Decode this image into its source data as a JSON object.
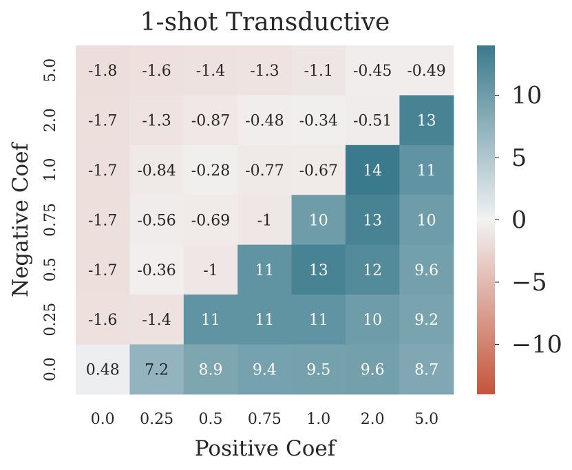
{
  "chart_data": {
    "type": "heatmap",
    "title": "1-shot Transductive",
    "xlabel": "Positive Coef",
    "ylabel": "Negative Coef",
    "x_categories": [
      "0.0",
      "0.25",
      "0.5",
      "0.75",
      "1.0",
      "2.0",
      "5.0"
    ],
    "y_categories": [
      "5.0",
      "2.0",
      "1.0",
      "0.75",
      "0.5",
      "0.25",
      "0.0"
    ],
    "values": [
      [
        -1.8,
        -1.6,
        -1.4,
        -1.3,
        -1.1,
        -0.45,
        -0.49
      ],
      [
        -1.7,
        -1.3,
        -0.87,
        -0.48,
        -0.34,
        -0.51,
        13
      ],
      [
        -1.7,
        -0.84,
        -0.28,
        -0.77,
        -0.67,
        14,
        11
      ],
      [
        -1.7,
        -0.56,
        -0.69,
        -1,
        10,
        13,
        10
      ],
      [
        -1.7,
        -0.36,
        -1,
        11,
        13,
        12,
        9.6
      ],
      [
        -1.6,
        -1.4,
        11,
        11,
        11,
        10,
        9.2
      ],
      [
        0.48,
        7.2,
        8.9,
        9.4,
        9.5,
        9.6,
        8.7
      ]
    ],
    "annotations": [
      [
        "-1.8",
        "-1.6",
        "-1.4",
        "-1.3",
        "-1.1",
        "-0.45",
        "-0.49"
      ],
      [
        "-1.7",
        "-1.3",
        "-0.87",
        "-0.48",
        "-0.34",
        "-0.51",
        "13"
      ],
      [
        "-1.7",
        "-0.84",
        "-0.28",
        "-0.77",
        "-0.67",
        "14",
        "11"
      ],
      [
        "-1.7",
        "-0.56",
        "-0.69",
        "-1",
        "10",
        "13",
        "10"
      ],
      [
        "-1.7",
        "-0.36",
        "-1",
        "11",
        "13",
        "12",
        "9.6"
      ],
      [
        "-1.6",
        "-1.4",
        "11",
        "11",
        "11",
        "10",
        "9.2"
      ],
      [
        "0.48",
        "7.2",
        "8.9",
        "9.4",
        "9.5",
        "9.6",
        "8.7"
      ]
    ],
    "colorbar": {
      "vmin": -14,
      "vmax": 14,
      "ticks": [
        10,
        5,
        0,
        -5,
        -10
      ],
      "tick_labels": [
        "10",
        "5",
        "0",
        "−5",
        "−10"
      ],
      "colors": {
        "low": "#c4553a",
        "mid": "#f2f2f2",
        "high": "#3a7a8c"
      }
    }
  }
}
